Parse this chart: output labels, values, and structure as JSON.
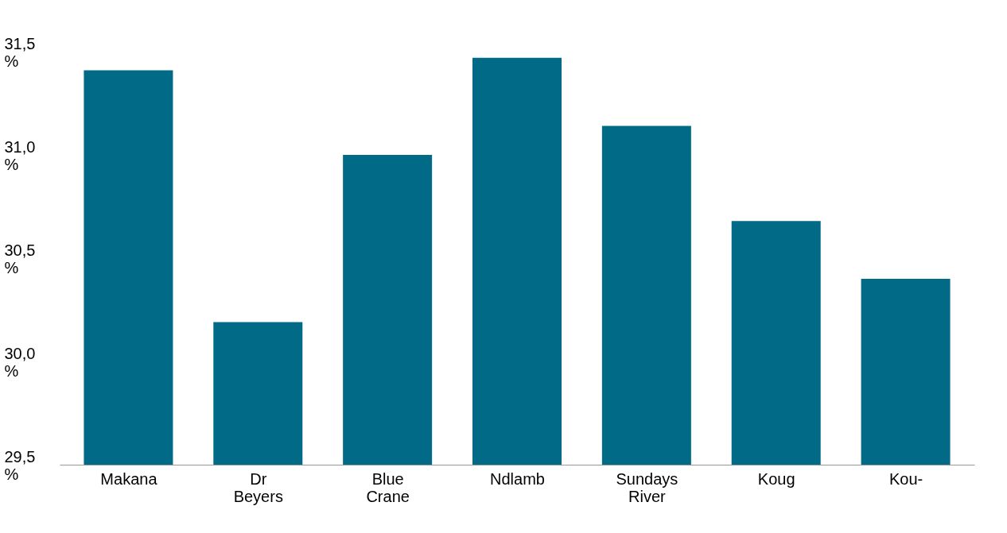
{
  "chart_data": {
    "type": "bar",
    "categories": [
      "Makana",
      "Dr Beyers",
      "Blue Crane",
      "Ndlamb",
      "Sundays River",
      "Koug",
      "Kou-"
    ],
    "values": [
      31.41,
      30.19,
      31.0,
      31.47,
      31.14,
      30.68,
      30.4
    ],
    "color": "#006a87",
    "ylim": [
      29.5,
      31.5
    ],
    "yticks": [
      {
        "value": 29.5,
        "label": "29,5 %"
      },
      {
        "value": 30.0,
        "label": "30,0 %"
      },
      {
        "value": 30.5,
        "label": "30,5 %"
      },
      {
        "value": 31.0,
        "label": "31,0 %"
      },
      {
        "value": 31.5,
        "label": "31,5 %"
      }
    ],
    "grid": false
  }
}
